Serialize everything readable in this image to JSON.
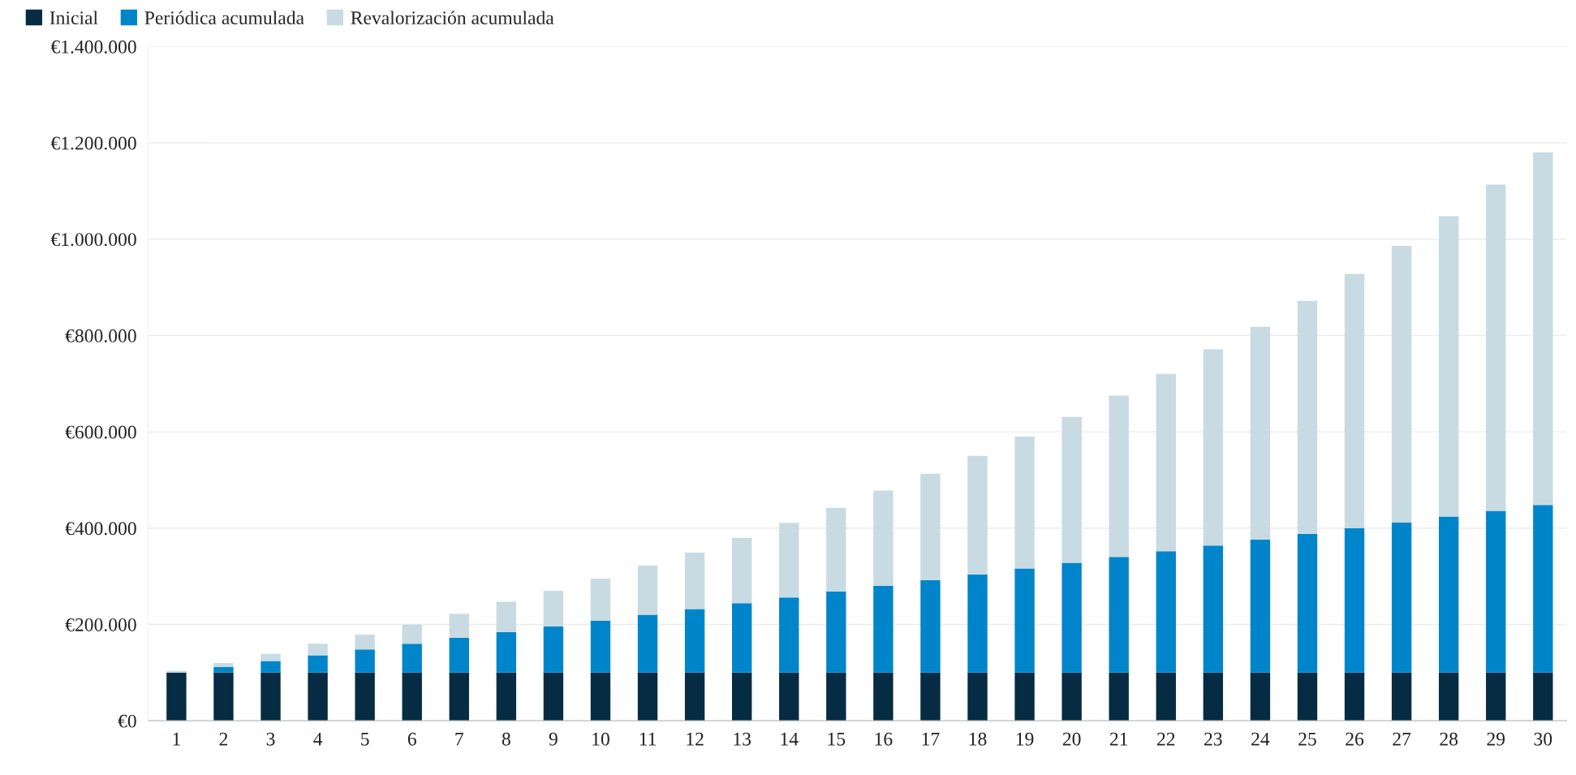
{
  "chart_data": {
    "type": "bar",
    "stacked": true,
    "categories": [
      "1",
      "2",
      "3",
      "4",
      "5",
      "6",
      "7",
      "8",
      "9",
      "10",
      "11",
      "12",
      "13",
      "14",
      "15",
      "16",
      "17",
      "18",
      "19",
      "20",
      "21",
      "22",
      "23",
      "24",
      "25",
      "26",
      "27",
      "28",
      "29",
      "30"
    ],
    "series": [
      {
        "name": "Inicial",
        "color": "#062c43",
        "values": [
          100000,
          100000,
          100000,
          100000,
          100000,
          100000,
          100000,
          100000,
          100000,
          100000,
          100000,
          100000,
          100000,
          100000,
          100000,
          100000,
          100000,
          100000,
          100000,
          100000,
          100000,
          100000,
          100000,
          100000,
          100000,
          100000,
          100000,
          100000,
          100000,
          100000
        ]
      },
      {
        "name": "Periódica acumulada",
        "color": "#0085ca",
        "values": [
          0,
          12000,
          24000,
          36000,
          48000,
          60000,
          72000,
          84000,
          96000,
          108000,
          120000,
          132000,
          144000,
          156000,
          168000,
          180000,
          192000,
          204000,
          216000,
          228000,
          240000,
          252000,
          264000,
          276000,
          288000,
          300000,
          312000,
          324000,
          336000,
          348000
        ]
      },
      {
        "name": "Revalorización acumulada",
        "color": "#c8dbe2",
        "values": [
          4000,
          8000,
          15000,
          24000,
          31000,
          40000,
          50000,
          63000,
          74000,
          87000,
          102000,
          117000,
          136000,
          155000,
          174000,
          198000,
          221000,
          246000,
          274000,
          303000,
          335000,
          368000,
          407000,
          442000,
          484000,
          528000,
          574000,
          624000,
          677000,
          732000
        ]
      }
    ],
    "ylim": [
      0,
      1400000
    ],
    "yticks": [
      {
        "value": 0,
        "label": "€0"
      },
      {
        "value": 200000,
        "label": "€200.000"
      },
      {
        "value": 400000,
        "label": "€400.000"
      },
      {
        "value": 600000,
        "label": "€600.000"
      },
      {
        "value": 800000,
        "label": "€800.000"
      },
      {
        "value": 1000000,
        "label": "€1.000.000"
      },
      {
        "value": 1200000,
        "label": "€1.200.000"
      },
      {
        "value": 1400000,
        "label": "€1.400.000"
      }
    ],
    "grid": "y",
    "legend": "top left"
  }
}
